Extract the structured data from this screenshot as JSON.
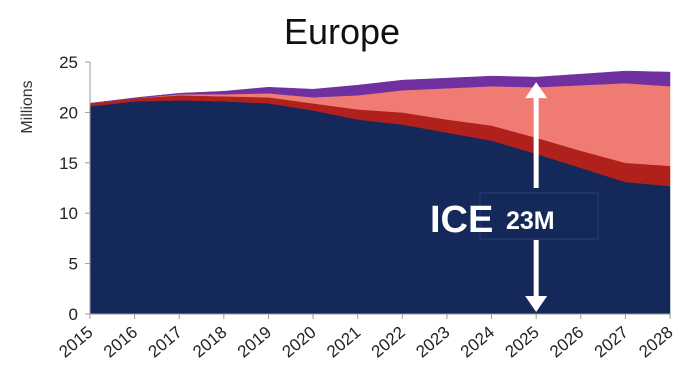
{
  "chart_data": {
    "type": "area",
    "stacked": true,
    "title": "Europe",
    "ylabel": "Millions",
    "xlabel": "",
    "x": [
      "2015",
      "2016",
      "2017",
      "2018",
      "2019",
      "2020",
      "2021",
      "2022",
      "2023",
      "2024",
      "2025",
      "2026",
      "2027",
      "2028"
    ],
    "ylim": [
      0,
      25
    ],
    "yticks": [
      0,
      5,
      10,
      15,
      20,
      25
    ],
    "grid": false,
    "legend": "none",
    "series": [
      {
        "color": "#14285a",
        "values": [
          20.6,
          21.1,
          21.2,
          21.1,
          20.9,
          20.2,
          19.3,
          18.8,
          18.0,
          17.2,
          15.9,
          14.5,
          13.1,
          12.7
        ]
      },
      {
        "color": "#b0211c",
        "values": [
          0.3,
          0.3,
          0.5,
          0.5,
          0.6,
          0.7,
          1.0,
          1.2,
          1.3,
          1.5,
          1.6,
          1.7,
          1.9,
          2.0
        ]
      },
      {
        "color": "#ef7b73",
        "values": [
          0.0,
          0.0,
          0.1,
          0.2,
          0.4,
          0.6,
          1.4,
          2.2,
          3.1,
          3.9,
          5.0,
          6.5,
          7.9,
          7.9
        ]
      },
      {
        "color": "#7030a0",
        "values": [
          0.0,
          0.05,
          0.1,
          0.3,
          0.6,
          0.8,
          1.0,
          1.0,
          1.0,
          1.0,
          1.0,
          1.1,
          1.2,
          1.4
        ]
      }
    ],
    "annotation": {
      "label_big": "ICE",
      "label_small": "23M",
      "arrow_x": "2025",
      "arrow_from": 0.2,
      "arrow_to": 23.0
    }
  }
}
